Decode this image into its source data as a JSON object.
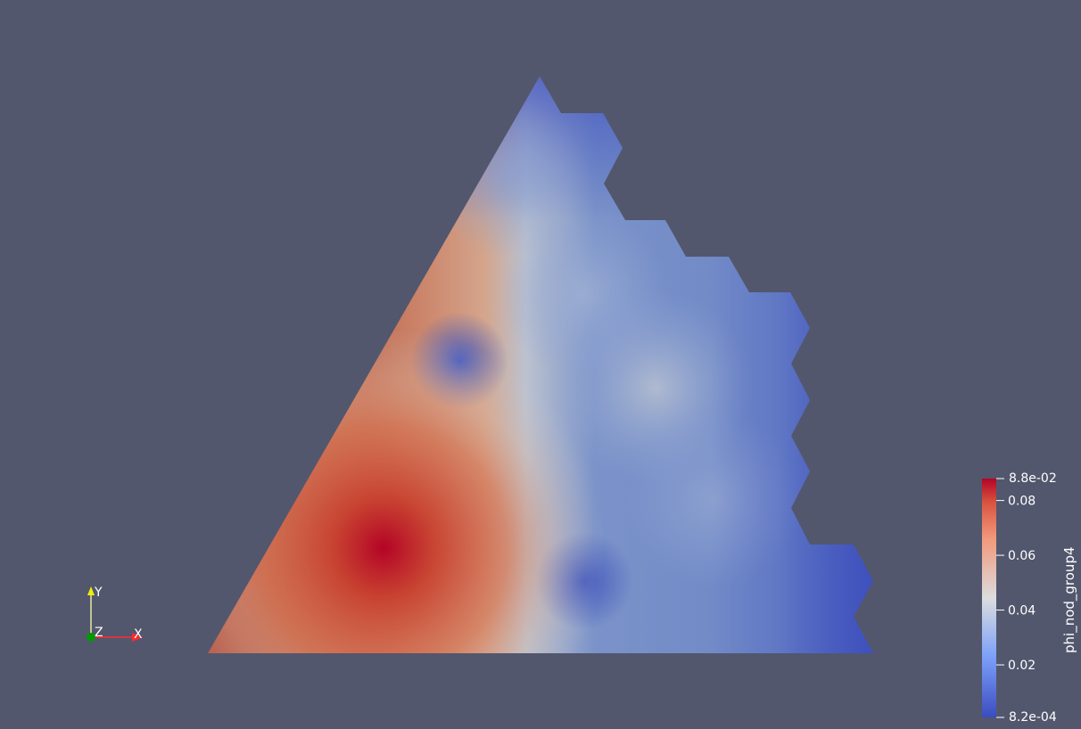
{
  "render": {
    "background": "#52576e",
    "field_name": "phi_nod_group4",
    "range_min": 0.00082,
    "range_max": 0.088,
    "colormap": "Cool to Warm"
  },
  "colorbar": {
    "title": "phi_nod_group4",
    "max_label": "8.8e-02",
    "min_label": "8.2e-04",
    "ticks": [
      {
        "label": "0.08",
        "value": 0.08
      },
      {
        "label": "0.06",
        "value": 0.06
      },
      {
        "label": "0.04",
        "value": 0.04
      },
      {
        "label": "0.02",
        "value": 0.02
      }
    ]
  },
  "axes": {
    "x_label": "X",
    "y_label": "Y",
    "z_label": "Z",
    "x_color": "#ff2a2a",
    "y_color": "#f0f000",
    "z_color": "#009a00"
  }
}
